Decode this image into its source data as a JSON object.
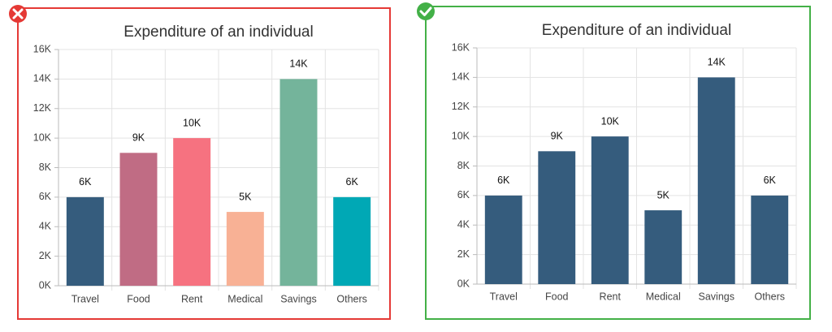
{
  "chart_data": [
    {
      "type": "bar",
      "title": "Expenditure of an individual",
      "categories": [
        "Travel",
        "Food",
        "Rent",
        "Medical",
        "Savings",
        "Others"
      ],
      "values": [
        6000,
        9000,
        10000,
        5000,
        14000,
        6000
      ],
      "value_labels": [
        "6K",
        "9K",
        "10K",
        "5K",
        "14K",
        "6K"
      ],
      "colors": [
        "#355c7d",
        "#c06c84",
        "#f67280",
        "#f8b195",
        "#74b49b",
        "#00a8b5"
      ],
      "ylim": [
        0,
        16000
      ],
      "yticks": [
        {
          "value": 0,
          "label": "0K"
        },
        {
          "value": 2000,
          "label": "2K"
        },
        {
          "value": 4000,
          "label": "4K"
        },
        {
          "value": 6000,
          "label": "6K"
        },
        {
          "value": 8000,
          "label": "8K"
        },
        {
          "value": 10000,
          "label": "10K"
        },
        {
          "value": 12000,
          "label": "12K"
        },
        {
          "value": 14000,
          "label": "14K"
        },
        {
          "value": 16000,
          "label": "16K"
        }
      ],
      "grid": true
    },
    {
      "type": "bar",
      "title": "Expenditure of an individual",
      "categories": [
        "Travel",
        "Food",
        "Rent",
        "Medical",
        "Savings",
        "Others"
      ],
      "values": [
        6000,
        9000,
        10000,
        5000,
        14000,
        6000
      ],
      "value_labels": [
        "6K",
        "9K",
        "10K",
        "5K",
        "14K",
        "6K"
      ],
      "color": "#355c7d",
      "ylim": [
        0,
        16000
      ],
      "yticks": [
        {
          "value": 0,
          "label": "0K"
        },
        {
          "value": 2000,
          "label": "2K"
        },
        {
          "value": 4000,
          "label": "4K"
        },
        {
          "value": 6000,
          "label": "6K"
        },
        {
          "value": 8000,
          "label": "8K"
        },
        {
          "value": 10000,
          "label": "10K"
        },
        {
          "value": 12000,
          "label": "12K"
        },
        {
          "value": 14000,
          "label": "14K"
        },
        {
          "value": 16000,
          "label": "16K"
        }
      ],
      "grid": true
    }
  ]
}
